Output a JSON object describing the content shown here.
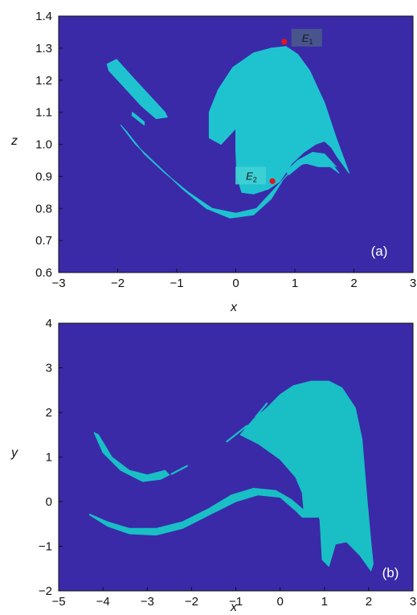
{
  "colors": {
    "background": "#3a2aa8",
    "region": "#1fc3d0",
    "region_b": "#19bfc5",
    "marker": "#e0141e",
    "label_box_dark": "#4a5a8a",
    "label_box_light": "#3fd0d4"
  },
  "chart_data": [
    {
      "id": "a",
      "type": "heatmap",
      "panel_label": "(a)",
      "xlabel": "x",
      "ylabel": "z",
      "xlim": [
        -3,
        3
      ],
      "ylim": [
        0.6,
        1.4
      ],
      "xticks": [
        "−3",
        "−2",
        "−1",
        "0",
        "1",
        "2",
        "3"
      ],
      "yticks": [
        "0.6",
        "0.7",
        "0.8",
        "0.9",
        "1.0",
        "1.1",
        "1.2",
        "1.3",
        "1.4"
      ],
      "points": [
        {
          "label": "E",
          "sub": "1",
          "x": 0.82,
          "z": 1.32
        },
        {
          "label": "E",
          "sub": "2",
          "x": 0.62,
          "z": 0.885
        }
      ],
      "regions": {
        "main_basin": [
          [
            0.0,
            1.05
          ],
          [
            -0.25,
            1.0
          ],
          [
            -0.45,
            1.02
          ],
          [
            -0.45,
            1.1
          ],
          [
            -0.3,
            1.17
          ],
          [
            -0.05,
            1.24
          ],
          [
            0.3,
            1.285
          ],
          [
            0.6,
            1.3
          ],
          [
            0.85,
            1.305
          ],
          [
            1.05,
            1.28
          ],
          [
            1.25,
            1.23
          ],
          [
            1.5,
            1.13
          ],
          [
            1.7,
            1.02
          ],
          [
            1.88,
            0.93
          ],
          [
            1.92,
            0.91
          ],
          [
            1.82,
            0.935
          ],
          [
            1.72,
            0.96
          ],
          [
            1.62,
            0.99
          ],
          [
            1.5,
            1.01
          ],
          [
            1.35,
            1.0
          ],
          [
            1.15,
            0.975
          ],
          [
            0.95,
            0.94
          ],
          [
            0.75,
            0.885
          ],
          [
            0.55,
            0.86
          ],
          [
            0.3,
            0.845
          ],
          [
            0.1,
            0.85
          ],
          [
            0.02,
            0.9
          ],
          [
            0.0,
            0.98
          ]
        ],
        "lower_band": [
          [
            -1.95,
            1.06
          ],
          [
            -1.7,
            1.0
          ],
          [
            -1.3,
            0.93
          ],
          [
            -0.9,
            0.86
          ],
          [
            -0.5,
            0.8
          ],
          [
            -0.1,
            0.77
          ],
          [
            0.3,
            0.78
          ],
          [
            0.6,
            0.83
          ],
          [
            0.8,
            0.89
          ],
          [
            1.0,
            0.935
          ],
          [
            1.2,
            0.94
          ],
          [
            1.4,
            0.93
          ],
          [
            1.6,
            0.93
          ],
          [
            1.75,
            0.91
          ],
          [
            1.6,
            0.945
          ],
          [
            1.45,
            0.96
          ],
          [
            1.3,
            0.96
          ],
          [
            1.1,
            0.95
          ],
          [
            0.9,
            0.91
          ],
          [
            0.65,
            0.86
          ],
          [
            0.35,
            0.8
          ],
          [
            0.0,
            0.785
          ],
          [
            -0.4,
            0.8
          ],
          [
            -0.8,
            0.85
          ],
          [
            -1.2,
            0.91
          ],
          [
            -1.55,
            0.97
          ],
          [
            -1.85,
            1.04
          ]
        ],
        "upper_thread": [
          [
            -1.75,
            1.1
          ],
          [
            -1.55,
            1.07
          ],
          [
            -1.55,
            1.06
          ],
          [
            -1.76,
            1.09
          ]
        ],
        "ellipse": [
          [
            -2.18,
            1.25
          ],
          [
            -2.02,
            1.265
          ],
          [
            -1.75,
            1.21
          ],
          [
            -1.45,
            1.15
          ],
          [
            -1.2,
            1.1
          ],
          [
            -1.16,
            1.085
          ],
          [
            -1.35,
            1.08
          ],
          [
            -1.6,
            1.12
          ],
          [
            -1.9,
            1.18
          ],
          [
            -2.15,
            1.23
          ]
        ],
        "inner_streak": [
          [
            0.85,
            0.915
          ],
          [
            1.05,
            0.95
          ],
          [
            1.3,
            0.975
          ],
          [
            1.5,
            0.97
          ],
          [
            1.7,
            0.93
          ],
          [
            1.5,
            0.955
          ],
          [
            1.3,
            0.955
          ],
          [
            1.1,
            0.935
          ],
          [
            0.9,
            0.905
          ]
        ]
      }
    },
    {
      "id": "b",
      "type": "heatmap",
      "panel_label": "(b)",
      "xlabel": "x",
      "ylabel": "y",
      "xlim": [
        -5,
        3
      ],
      "ylim": [
        -2,
        4
      ],
      "xticks": [
        "−5",
        "−4",
        "−3",
        "−2",
        "−1",
        "0",
        "1",
        "2",
        "3"
      ],
      "yticks": [
        "−2",
        "−1",
        "0",
        "1",
        "2",
        "3",
        "4"
      ],
      "regions": {
        "main_basin": [
          [
            -0.9,
            1.5
          ],
          [
            -0.6,
            1.85
          ],
          [
            -0.3,
            2.1
          ],
          [
            0.0,
            2.4
          ],
          [
            0.3,
            2.6
          ],
          [
            0.7,
            2.7
          ],
          [
            1.1,
            2.7
          ],
          [
            1.4,
            2.55
          ],
          [
            1.7,
            2.1
          ],
          [
            1.85,
            1.4
          ],
          [
            1.95,
            0.2
          ],
          [
            2.05,
            -0.9
          ],
          [
            2.1,
            -1.4
          ],
          [
            2.05,
            -1.55
          ],
          [
            1.8,
            -1.2
          ],
          [
            1.5,
            -0.9
          ],
          [
            1.25,
            -0.95
          ],
          [
            1.1,
            -1.45
          ],
          [
            0.95,
            -1.3
          ],
          [
            0.9,
            -0.4
          ],
          [
            0.85,
            -0.3
          ],
          [
            0.55,
            -0.35
          ],
          [
            0.5,
            0.2
          ],
          [
            0.35,
            0.55
          ],
          [
            0.0,
            0.95
          ],
          [
            -0.5,
            1.3
          ]
        ],
        "lower_band": [
          [
            -4.3,
            -0.3
          ],
          [
            -3.9,
            -0.55
          ],
          [
            -3.4,
            -0.72
          ],
          [
            -2.8,
            -0.75
          ],
          [
            -2.2,
            -0.6
          ],
          [
            -1.6,
            -0.3
          ],
          [
            -1.0,
            0.0
          ],
          [
            -0.5,
            0.15
          ],
          [
            0.0,
            0.1
          ],
          [
            0.35,
            -0.2
          ],
          [
            0.5,
            -0.35
          ],
          [
            0.85,
            -0.35
          ],
          [
            0.85,
            -0.3
          ],
          [
            0.55,
            -0.2
          ],
          [
            0.25,
            0.05
          ],
          [
            -0.1,
            0.25
          ],
          [
            -0.6,
            0.3
          ],
          [
            -1.1,
            0.15
          ],
          [
            -1.6,
            -0.15
          ],
          [
            -2.2,
            -0.45
          ],
          [
            -2.8,
            -0.6
          ],
          [
            -3.4,
            -0.6
          ],
          [
            -3.9,
            -0.45
          ],
          [
            -4.3,
            -0.28
          ]
        ],
        "upper_arc": [
          [
            -4.2,
            1.55
          ],
          [
            -4.0,
            1.1
          ],
          [
            -3.6,
            0.7
          ],
          [
            -3.1,
            0.45
          ],
          [
            -2.7,
            0.5
          ],
          [
            -2.5,
            0.6
          ],
          [
            -2.6,
            0.7
          ],
          [
            -3.0,
            0.6
          ],
          [
            -3.4,
            0.7
          ],
          [
            -3.8,
            1.0
          ],
          [
            -4.1,
            1.5
          ]
        ],
        "dashes": [
          [
            -2.45,
            0.62
          ],
          [
            -2.1,
            0.8
          ],
          [
            -1.2,
            1.35
          ],
          [
            -0.75,
            1.7
          ],
          [
            -0.55,
            1.9
          ],
          [
            -0.3,
            2.2
          ],
          [
            -0.15,
            2.35
          ]
        ]
      }
    }
  ]
}
